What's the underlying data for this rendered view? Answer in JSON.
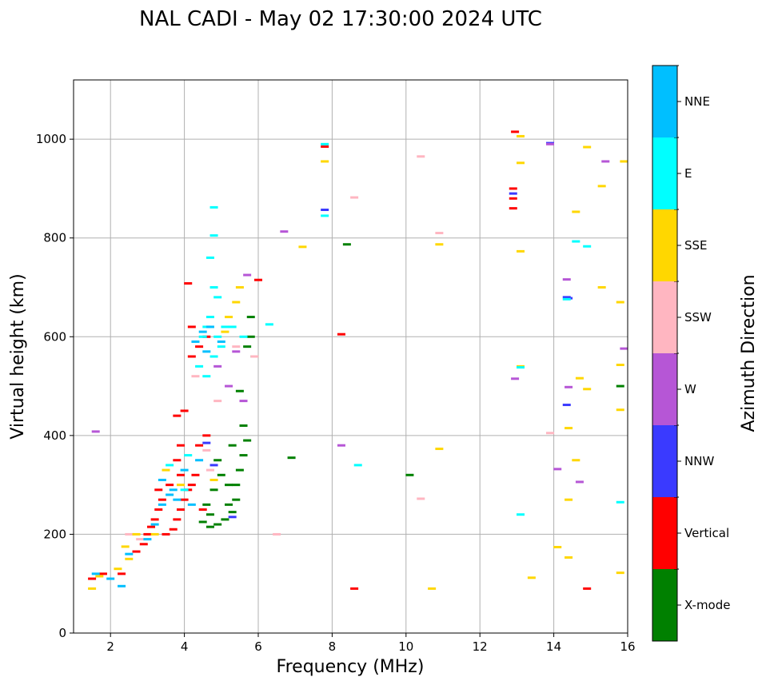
{
  "chart_data": {
    "type": "scatter",
    "title": "NAL CADI - May 02 17:30:00 2024 UTC",
    "xlabel": "Frequency (MHz)",
    "ylabel": "Virtual height (km)",
    "xlim": [
      1,
      16
    ],
    "ylim": [
      0,
      1120
    ],
    "x_ticks": [
      "2",
      "4",
      "6",
      "8",
      "10",
      "12",
      "14",
      "16"
    ],
    "y_ticks": [
      "0",
      "200",
      "400",
      "600",
      "800",
      "1000"
    ],
    "grid": true,
    "colorbar": {
      "label": "Azimuth Direction",
      "categories": [
        {
          "name": "X-mode",
          "color": "#008000"
        },
        {
          "name": "Vertical",
          "color": "#ff0000"
        },
        {
          "name": "NNW",
          "color": "#3a3aff"
        },
        {
          "name": "W",
          "color": "#b656d6"
        },
        {
          "name": "SSW",
          "color": "#ffb6c1"
        },
        {
          "name": "SSE",
          "color": "#ffd700"
        },
        {
          "name": "E",
          "color": "#00ffff"
        },
        {
          "name": "NNE",
          "color": "#00bfff"
        }
      ]
    },
    "series": [
      {
        "name": "X-mode",
        "points": [
          [
            4.7,
            215
          ],
          [
            4.9,
            220
          ],
          [
            5.1,
            230
          ],
          [
            5.3,
            245
          ],
          [
            5.4,
            270
          ],
          [
            5.2,
            300
          ],
          [
            5.0,
            320
          ],
          [
            4.8,
            290
          ],
          [
            4.6,
            260
          ],
          [
            5.5,
            330
          ],
          [
            5.6,
            360
          ],
          [
            5.7,
            390
          ],
          [
            5.6,
            420
          ],
          [
            5.3,
            380
          ],
          [
            4.9,
            350
          ],
          [
            5.8,
            600
          ],
          [
            5.9,
            560
          ],
          [
            5.7,
            580
          ],
          [
            5.5,
            490
          ],
          [
            5.8,
            640
          ],
          [
            6.9,
            355
          ],
          [
            10.1,
            320
          ],
          [
            8.4,
            787
          ],
          [
            15.8,
            500
          ],
          [
            4.5,
            225
          ],
          [
            5.2,
            260
          ],
          [
            5.4,
            300
          ],
          [
            4.7,
            240
          ]
        ]
      },
      {
        "name": "Vertical",
        "points": [
          [
            1.5,
            110
          ],
          [
            1.8,
            120
          ],
          [
            2.3,
            120
          ],
          [
            2.7,
            165
          ],
          [
            2.9,
            180
          ],
          [
            3.0,
            200
          ],
          [
            3.1,
            215
          ],
          [
            3.2,
            230
          ],
          [
            3.3,
            250
          ],
          [
            3.4,
            270
          ],
          [
            3.5,
            200
          ],
          [
            3.7,
            210
          ],
          [
            3.8,
            230
          ],
          [
            3.9,
            250
          ],
          [
            4.0,
            270
          ],
          [
            4.1,
            290
          ],
          [
            3.6,
            300
          ],
          [
            3.9,
            320
          ],
          [
            4.2,
            300
          ],
          [
            3.8,
            350
          ],
          [
            3.9,
            380
          ],
          [
            3.8,
            440
          ],
          [
            4.0,
            450
          ],
          [
            4.4,
            380
          ],
          [
            4.6,
            400
          ],
          [
            4.2,
            560
          ],
          [
            4.4,
            580
          ],
          [
            4.6,
            600
          ],
          [
            4.2,
            620
          ],
          [
            6.0,
            715
          ],
          [
            4.1,
            708
          ],
          [
            8.25,
            605
          ],
          [
            8.6,
            90
          ],
          [
            14.9,
            90
          ],
          [
            12.9,
            900
          ],
          [
            12.9,
            880
          ],
          [
            12.9,
            860
          ],
          [
            12.95,
            1015
          ],
          [
            7.8,
            985
          ],
          [
            3.3,
            290
          ],
          [
            4.3,
            320
          ],
          [
            4.5,
            250
          ]
        ]
      },
      {
        "name": "NNW",
        "points": [
          [
            4.8,
            340
          ],
          [
            4.6,
            385
          ],
          [
            5.3,
            235
          ],
          [
            7.8,
            857
          ],
          [
            13.9,
            992
          ],
          [
            14.35,
            680
          ],
          [
            14.35,
            462
          ],
          [
            12.9,
            890
          ],
          [
            14.4,
            678
          ]
        ]
      },
      {
        "name": "W",
        "points": [
          [
            1.6,
            408
          ],
          [
            6.7,
            813
          ],
          [
            4.9,
            540
          ],
          [
            5.4,
            570
          ],
          [
            5.7,
            725
          ],
          [
            8.25,
            380
          ],
          [
            14.35,
            716
          ],
          [
            14.4,
            498
          ],
          [
            14.1,
            332
          ],
          [
            14.7,
            306
          ],
          [
            15.9,
            576
          ],
          [
            15.4,
            955
          ],
          [
            12.95,
            515
          ],
          [
            13.9,
            990
          ],
          [
            5.2,
            500
          ],
          [
            5.6,
            470
          ]
        ]
      },
      {
        "name": "SSW",
        "points": [
          [
            2.5,
            200
          ],
          [
            2.8,
            190
          ],
          [
            4.6,
            370
          ],
          [
            4.3,
            520
          ],
          [
            5.4,
            580
          ],
          [
            8.6,
            882
          ],
          [
            10.4,
            965
          ],
          [
            10.4,
            272
          ],
          [
            6.5,
            200
          ],
          [
            13.9,
            405
          ],
          [
            10.9,
            810
          ],
          [
            4.9,
            470
          ],
          [
            5.9,
            560
          ],
          [
            4.7,
            330
          ]
        ]
      },
      {
        "name": "SSE",
        "points": [
          [
            1.5,
            90
          ],
          [
            1.7,
            115
          ],
          [
            2.2,
            130
          ],
          [
            2.5,
            150
          ],
          [
            2.4,
            175
          ],
          [
            2.7,
            200
          ],
          [
            3.2,
            200
          ],
          [
            3.5,
            330
          ],
          [
            4.8,
            310
          ],
          [
            5.2,
            640
          ],
          [
            5.4,
            670
          ],
          [
            5.5,
            700
          ],
          [
            7.2,
            782
          ],
          [
            7.8,
            955
          ],
          [
            10.9,
            787
          ],
          [
            10.9,
            373
          ],
          [
            10.7,
            90
          ],
          [
            13.1,
            1006
          ],
          [
            13.1,
            952
          ],
          [
            13.1,
            773
          ],
          [
            13.1,
            540
          ],
          [
            14.1,
            174
          ],
          [
            14.4,
            153
          ],
          [
            14.4,
            270
          ],
          [
            14.4,
            415
          ],
          [
            14.6,
            350
          ],
          [
            14.7,
            516
          ],
          [
            14.6,
            853
          ],
          [
            14.9,
            984
          ],
          [
            14.9,
            494
          ],
          [
            15.3,
            905
          ],
          [
            15.3,
            700
          ],
          [
            15.8,
            670
          ],
          [
            15.8,
            543
          ],
          [
            15.8,
            452
          ],
          [
            15.8,
            122
          ],
          [
            13.4,
            112
          ],
          [
            15.9,
            955
          ],
          [
            3.9,
            300
          ],
          [
            5.1,
            610
          ]
        ]
      },
      {
        "name": "E",
        "points": [
          [
            4.5,
            600
          ],
          [
            4.6,
            620
          ],
          [
            4.7,
            640
          ],
          [
            4.8,
            560
          ],
          [
            4.9,
            600
          ],
          [
            5.0,
            580
          ],
          [
            4.4,
            540
          ],
          [
            4.6,
            520
          ],
          [
            5.1,
            620
          ],
          [
            4.9,
            680
          ],
          [
            4.8,
            700
          ],
          [
            4.7,
            760
          ],
          [
            4.8,
            805
          ],
          [
            4.8,
            862
          ],
          [
            7.8,
            990
          ],
          [
            7.8,
            845
          ],
          [
            6.3,
            625
          ],
          [
            8.7,
            340
          ],
          [
            13.1,
            240
          ],
          [
            14.6,
            793
          ],
          [
            14.9,
            783
          ],
          [
            15.8,
            265
          ],
          [
            3.6,
            340
          ],
          [
            4.1,
            360
          ],
          [
            4.0,
            290
          ],
          [
            5.6,
            600
          ],
          [
            5.3,
            620
          ],
          [
            14.35,
            676
          ],
          [
            13.1,
            538
          ]
        ]
      },
      {
        "name": "NNE",
        "points": [
          [
            1.6,
            120
          ],
          [
            2.0,
            110
          ],
          [
            2.3,
            95
          ],
          [
            2.5,
            160
          ],
          [
            3.2,
            220
          ],
          [
            3.4,
            260
          ],
          [
            3.6,
            280
          ],
          [
            3.8,
            270
          ],
          [
            3.4,
            310
          ],
          [
            4.0,
            330
          ],
          [
            4.4,
            350
          ],
          [
            4.6,
            570
          ],
          [
            4.3,
            590
          ],
          [
            4.5,
            610
          ],
          [
            4.7,
            620
          ],
          [
            5.0,
            590
          ],
          [
            3.0,
            190
          ],
          [
            3.7,
            290
          ],
          [
            4.2,
            260
          ]
        ]
      }
    ]
  }
}
